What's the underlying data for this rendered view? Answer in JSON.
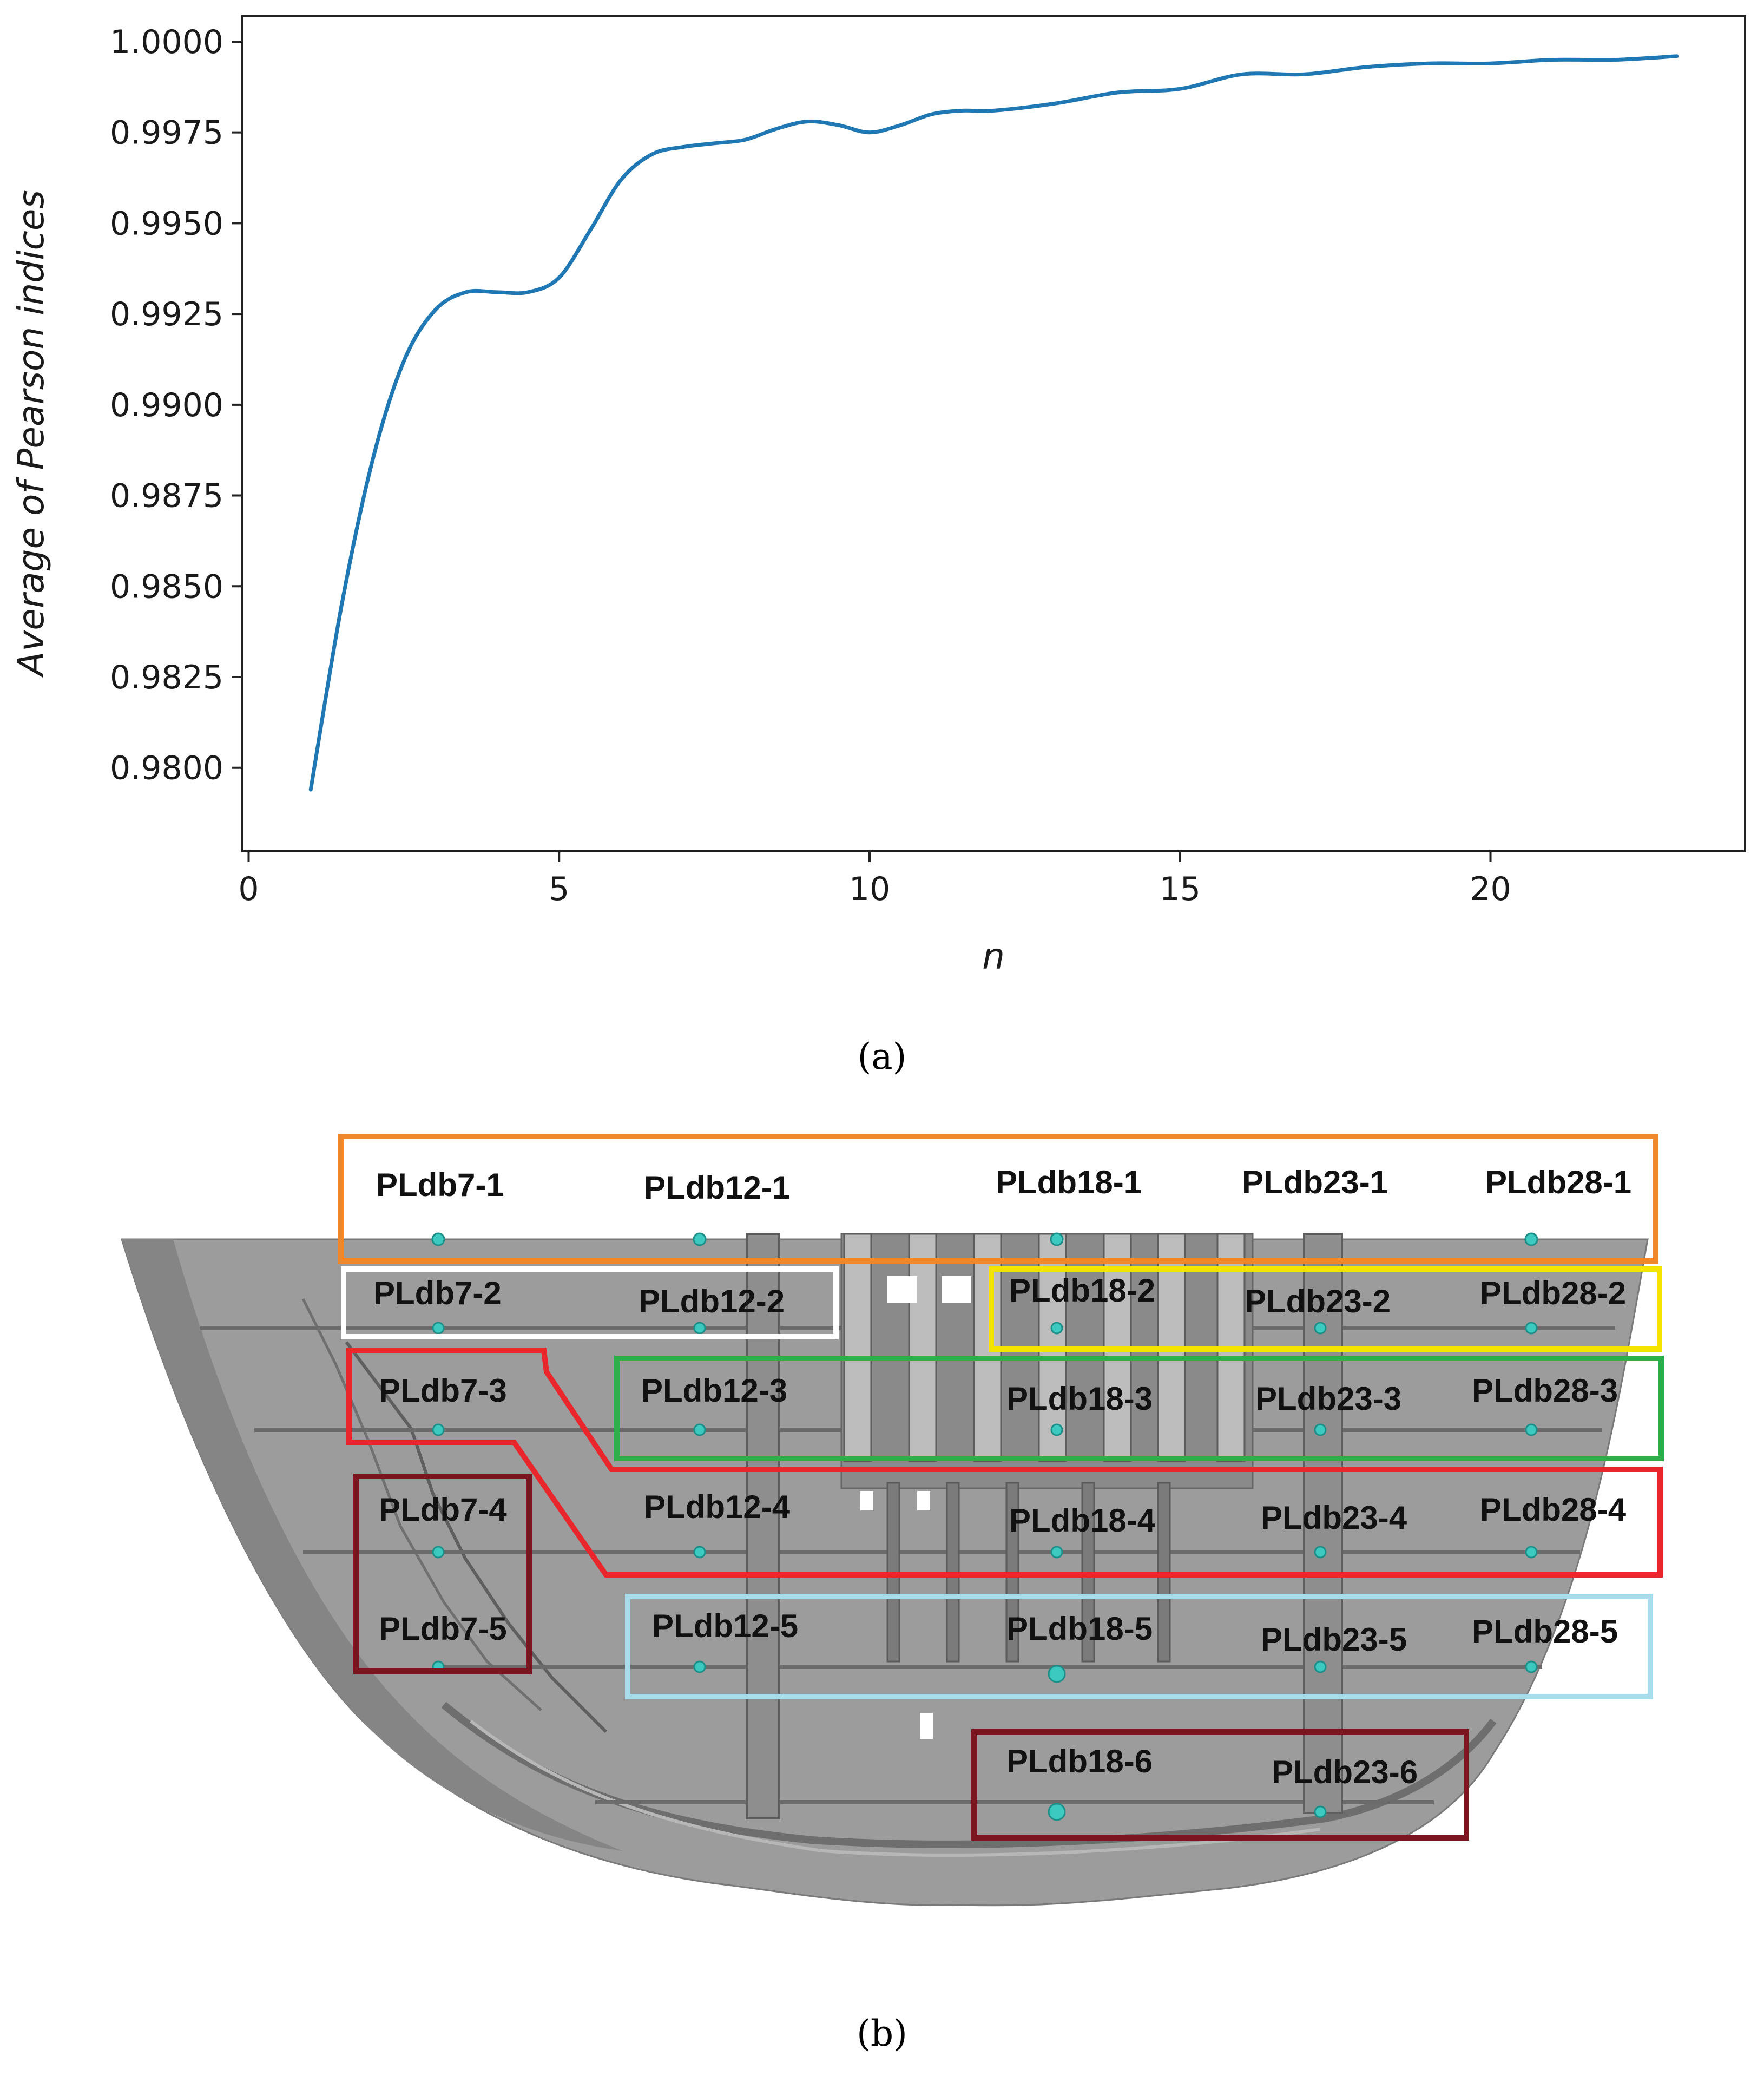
{
  "panel_a_label": "(a)",
  "panel_b_label": "(b)",
  "chart_data": {
    "type": "line",
    "title": "",
    "xlabel": "n",
    "ylabel": "Average of Pearson indices",
    "xlim": [
      -0.1,
      24.1
    ],
    "ylim": [
      0.9777,
      1.0007
    ],
    "xticks": [
      0,
      5,
      10,
      15,
      20
    ],
    "xtick_labels": [
      "0",
      "5",
      "10",
      "15",
      "20"
    ],
    "yticks": [
      0.98,
      0.9825,
      0.985,
      0.9875,
      0.99,
      0.9925,
      0.995,
      0.9975,
      1.0
    ],
    "ytick_labels": [
      "0.9800",
      "0.9825",
      "0.9850",
      "0.9875",
      "0.9900",
      "0.9925",
      "0.9950",
      "0.9975",
      "1.0000"
    ],
    "grid": false,
    "series": [
      {
        "color": "#1f77b4",
        "x": [
          1,
          1.5,
          2,
          2.5,
          3,
          3.5,
          4,
          4.5,
          5,
          5.5,
          6,
          6.5,
          7,
          7.5,
          8,
          8.5,
          9,
          9.5,
          10,
          10.5,
          11,
          11.5,
          12,
          13,
          14,
          15,
          16,
          17,
          18,
          19,
          20,
          21,
          22,
          23
        ],
        "y": [
          0.9794,
          0.9845,
          0.9885,
          0.9912,
          0.9926,
          0.9931,
          0.9931,
          0.9931,
          0.9935,
          0.9948,
          0.9962,
          0.9969,
          0.9971,
          0.9972,
          0.9973,
          0.9976,
          0.9978,
          0.9977,
          0.9975,
          0.9977,
          0.998,
          0.9981,
          0.9981,
          0.9983,
          0.9986,
          0.9987,
          0.9991,
          0.9991,
          0.9993,
          0.9994,
          0.9994,
          0.9995,
          0.9995,
          0.9996
        ]
      }
    ]
  },
  "diagram": {
    "gauges": [
      {
        "label": "PLdb7-1"
      },
      {
        "label": "PLdb12-1"
      },
      {
        "label": "PLdb18-1"
      },
      {
        "label": "PLdb23-1"
      },
      {
        "label": "PLdb28-1"
      },
      {
        "label": "PLdb7-2"
      },
      {
        "label": "PLdb12-2"
      },
      {
        "label": "PLdb18-2"
      },
      {
        "label": "PLdb23-2"
      },
      {
        "label": "PLdb28-2"
      },
      {
        "label": "PLdb7-3"
      },
      {
        "label": "PLdb12-3"
      },
      {
        "label": "PLdb18-3"
      },
      {
        "label": "PLdb23-3"
      },
      {
        "label": "PLdb28-3"
      },
      {
        "label": "PLdb7-4"
      },
      {
        "label": "PLdb12-4"
      },
      {
        "label": "PLdb18-4"
      },
      {
        "label": "PLdb23-4"
      },
      {
        "label": "PLdb28-4"
      },
      {
        "label": "PLdb7-5"
      },
      {
        "label": "PLdb12-5"
      },
      {
        "label": "PLdb18-5"
      },
      {
        "label": "PLdb23-5"
      },
      {
        "label": "PLdb28-5"
      },
      {
        "label": "PLdb18-6"
      },
      {
        "label": "PLdb23-6"
      }
    ],
    "group_colors": {
      "row1": "#f0882a",
      "row2_left": "#ffffff",
      "row2_right": "#f5e400",
      "row3_right": "#2fae4b",
      "rows3_4": "#e8262c",
      "row5": "#a9dcea",
      "col7_rows4_5": "#7b1520",
      "bottom": "#7b1520"
    },
    "dam_color": "#9a9a9a",
    "marker_color": "#3cc9c0"
  }
}
